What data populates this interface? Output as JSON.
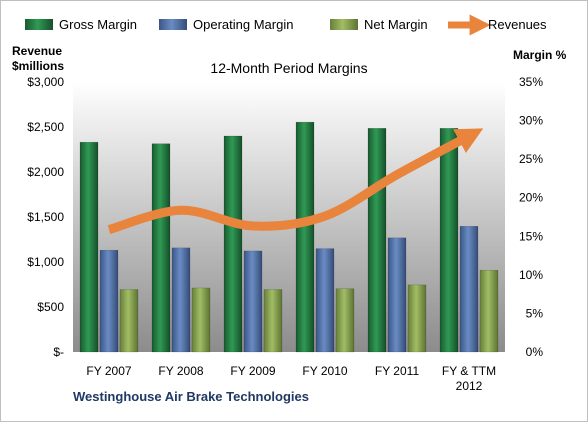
{
  "chart_data": {
    "type": "bar",
    "title": "12-Month Period Margins",
    "footer": "Westinghouse Air Brake Technologies",
    "y_left_label_line1": "Revenue",
    "y_left_label_line2": "$millions",
    "y_right_label": "Margin %",
    "y_left_ticks": [
      "$-",
      "$500",
      "$1,000",
      "$1,500",
      "$2,000",
      "$2,500",
      "$3,000"
    ],
    "y_right_ticks": [
      "0%",
      "5%",
      "10%",
      "15%",
      "20%",
      "25%",
      "30%",
      "35%"
    ],
    "categories": [
      [
        "FY 2007"
      ],
      [
        "FY 2008"
      ],
      [
        "FY 2009"
      ],
      [
        "FY 2010"
      ],
      [
        "FY 2011"
      ],
      [
        "FY & TTM",
        "2012"
      ]
    ],
    "ylim_left": [
      0,
      3000
    ],
    "ylim_right": [
      0,
      35
    ],
    "series": [
      {
        "name": "Gross Margin",
        "axis": "right",
        "color": "#23753f",
        "values": [
          27.2,
          27.0,
          28.0,
          29.8,
          29.0,
          29.0
        ]
      },
      {
        "name": "Operating Margin",
        "axis": "right",
        "color": "#4a6aa0",
        "values": [
          13.2,
          13.5,
          13.1,
          13.4,
          14.8,
          16.3
        ]
      },
      {
        "name": "Net Margin",
        "axis": "right",
        "color": "#7f9a4a",
        "values": [
          8.1,
          8.3,
          8.1,
          8.2,
          8.7,
          10.6
        ]
      },
      {
        "name": "Revenues",
        "axis": "left",
        "color": "#e8843c",
        "type": "line",
        "values": [
          1360,
          1575,
          1400,
          1510,
          1970,
          2400
        ]
      }
    ],
    "grid": false,
    "legend_position": "top"
  }
}
